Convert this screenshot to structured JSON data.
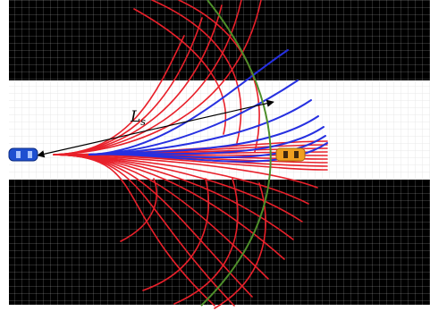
{
  "figure": {
    "distance_label": "L",
    "distance_subscript": "s",
    "colors": {
      "background_blocked": "#000000",
      "grid_on_black": "#9a9a9a",
      "road": "#ffffff",
      "grid_on_road": "#d6d6d6",
      "trajectory_infeasible": "#e8202a",
      "trajectory_feasible": "#2630e0",
      "boundary_arc": "#4e8f2a",
      "ego_vehicle": "#1e4fd0",
      "target_vehicle": "#f0a020",
      "distance_arrow": "#000000"
    },
    "icons": {
      "ego_vehicle": "car-icon",
      "target_vehicle": "car-icon"
    }
  }
}
